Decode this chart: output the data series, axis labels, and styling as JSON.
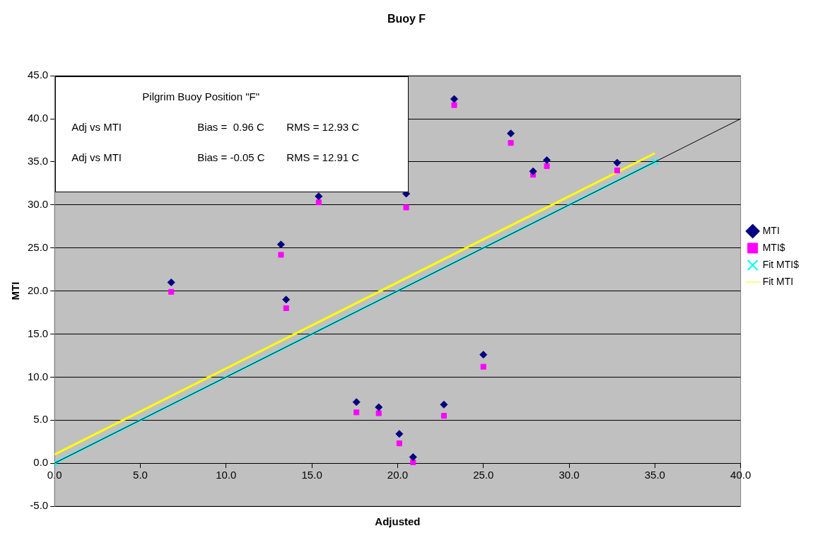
{
  "chart_data": {
    "type": "scatter",
    "title": "Buoy F",
    "xlabel": "Adjusted",
    "ylabel": "MTI",
    "annotations": [
      "Pilgrim Buoy Position \"F\"",
      "Adj vs MTI",
      "Bias =  0.96 C",
      "RMS = 12.93 C",
      "Adj vs MTI",
      "Bias = -0.05 C",
      "RMS = 12.91 C"
    ],
    "x": [
      6.8,
      13.2,
      13.5,
      15.4,
      17.6,
      18.9,
      20.1,
      20.5,
      20.9,
      22.7,
      23.3,
      25.0,
      26.6,
      27.9,
      28.7,
      32.8
    ],
    "series": [
      {
        "name": "MTI",
        "type": "scatter",
        "marker": "diamond",
        "color": "#000080",
        "values": [
          21.0,
          25.4,
          19.0,
          31.0,
          7.1,
          6.5,
          3.4,
          31.3,
          0.7,
          6.8,
          42.3,
          12.6,
          38.3,
          33.9,
          35.2,
          34.9
        ]
      },
      {
        "name": "MTI$",
        "type": "scatter",
        "marker": "square",
        "color": "#ff00ff",
        "values": [
          19.9,
          24.2,
          18.0,
          30.3,
          5.9,
          5.8,
          2.3,
          29.7,
          0.1,
          5.5,
          41.6,
          11.2,
          37.2,
          33.5,
          34.5,
          34.0
        ]
      },
      {
        "name": "Fit MTI",
        "type": "line",
        "marker": "none",
        "color": "#ffff00",
        "x": [
          0,
          35
        ],
        "values": [
          1.0,
          36.0
        ]
      },
      {
        "name": "Fit MTI$",
        "type": "line",
        "marker": "cross",
        "color": "#00ffff",
        "x": [
          0,
          35
        ],
        "values": [
          0,
          35.0
        ]
      },
      {
        "type": "line",
        "marker": "none",
        "color": "#000000",
        "x": [
          0,
          40
        ],
        "values": [
          0,
          40
        ]
      }
    ],
    "xlim": [
      0,
      40
    ],
    "xticks": [
      {
        "value": 0,
        "label": "0.0"
      },
      {
        "value": 5,
        "label": "5.0"
      },
      {
        "value": 10,
        "label": "10.0"
      },
      {
        "value": 15,
        "label": "15.0"
      },
      {
        "value": 20,
        "label": "20.0"
      },
      {
        "value": 25,
        "label": "25.0"
      },
      {
        "value": 30,
        "label": "30.0"
      },
      {
        "value": 35,
        "label": "35.0"
      },
      {
        "value": 40,
        "label": "40.0"
      }
    ],
    "ylim": [
      -5,
      45
    ],
    "yticks": [
      {
        "value": -5,
        "label": "-5.0"
      },
      {
        "value": 0,
        "label": "0.0"
      },
      {
        "value": 5,
        "label": "5.0"
      },
      {
        "value": 10,
        "label": "10.0"
      },
      {
        "value": 15,
        "label": "15.0"
      },
      {
        "value": 20,
        "label": "20.0"
      },
      {
        "value": 25,
        "label": "25.0"
      },
      {
        "value": 30,
        "label": "30.0"
      },
      {
        "value": 35,
        "label": "35.0"
      },
      {
        "value": 40,
        "label": "40.0"
      },
      {
        "value": 45,
        "label": "45.0"
      }
    ],
    "grid": "y",
    "legend": "right"
  }
}
